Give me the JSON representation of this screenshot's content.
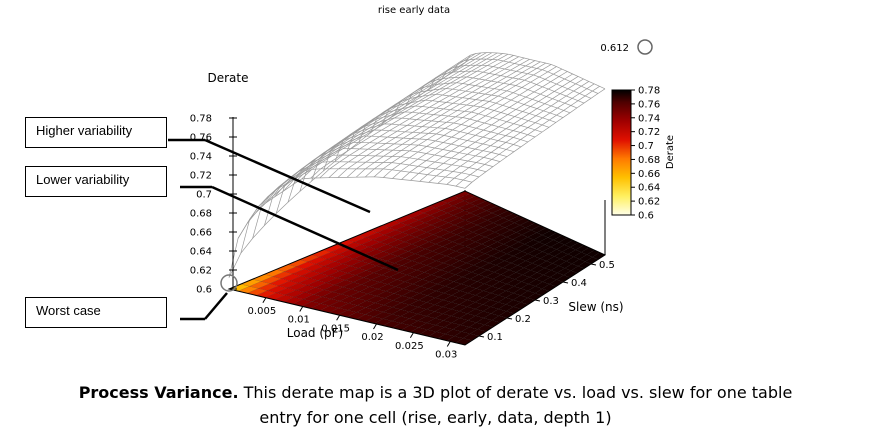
{
  "chart_data": {
    "type": "surface-3d",
    "title": "rise early data",
    "zlabel": "Derate",
    "xlabel": "Load (pF)",
    "ylabel": "Slew (ns)",
    "x_ticks": [
      "0.005",
      "0.01",
      "0.015",
      "0.02",
      "0.025",
      "0.03"
    ],
    "y_ticks": [
      "0.1",
      "0.2",
      "0.3",
      "0.4",
      "0.5"
    ],
    "z_ticks": [
      "0.6",
      "0.62",
      "0.64",
      "0.66",
      "0.68",
      "0.7",
      "0.72",
      "0.74",
      "0.76",
      "0.78"
    ],
    "xlim": [
      0.0,
      0.032
    ],
    "ylim": [
      0.05,
      0.55
    ],
    "zlim": [
      0.6,
      0.78
    ],
    "colorbar": {
      "label": "Derate",
      "ticks": [
        "0.78",
        "0.76",
        "0.74",
        "0.72",
        "0.7",
        "0.68",
        "0.66",
        "0.64",
        "0.62",
        "0.6"
      ],
      "range": [
        0.6,
        0.78
      ],
      "colors": [
        "#ffffe8",
        "#fff060",
        "#ffc000",
        "#ff7a00",
        "#e01000",
        "#a00000",
        "#500000",
        "#000000"
      ]
    },
    "marker_value": "0.612",
    "surface_samples": [
      {
        "load": 0.0,
        "slew": 0.05,
        "derate": 0.612
      },
      {
        "load": 0.005,
        "slew": 0.05,
        "derate": 0.7
      },
      {
        "load": 0.01,
        "slew": 0.05,
        "derate": 0.735
      },
      {
        "load": 0.02,
        "slew": 0.05,
        "derate": 0.755
      },
      {
        "load": 0.03,
        "slew": 0.05,
        "derate": 0.765
      },
      {
        "load": 0.0,
        "slew": 0.55,
        "derate": 0.735
      },
      {
        "load": 0.01,
        "slew": 0.55,
        "derate": 0.765
      },
      {
        "load": 0.02,
        "slew": 0.55,
        "derate": 0.775
      },
      {
        "load": 0.03,
        "slew": 0.55,
        "derate": 0.775
      }
    ]
  },
  "annotations": {
    "higher_variability": "Higher variability",
    "lower_variability": "Lower variability",
    "worst_case": "Worst case"
  },
  "caption": {
    "bold": "Process Variance.",
    "line1": " This derate map is a 3D plot of derate vs. load vs. slew for one table",
    "line2": "entry for one cell (rise, early, data, depth 1)"
  }
}
